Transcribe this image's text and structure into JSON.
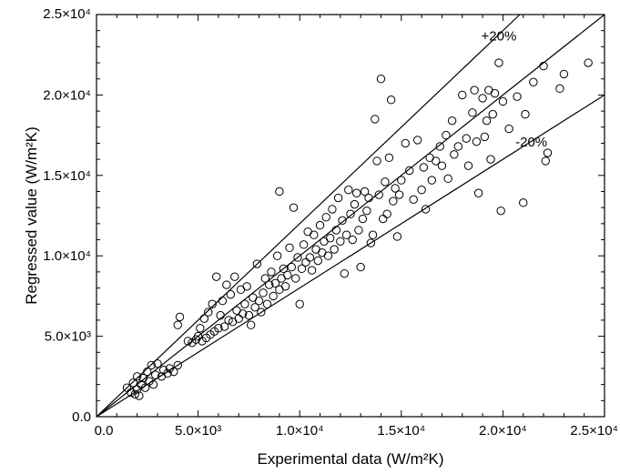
{
  "chart_data": {
    "type": "scatter",
    "xlabel": "Experimental data (W/m²K)",
    "ylabel": "Regressed value (W/m²K)",
    "xlim": [
      0,
      25000
    ],
    "ylim": [
      0,
      25000
    ],
    "x_ticks": [
      {
        "value": 0,
        "label": "0.0"
      },
      {
        "value": 5000,
        "label": "5.0×10³"
      },
      {
        "value": 10000,
        "label": "1.0×10⁴"
      },
      {
        "value": 15000,
        "label": "1.5×10⁴"
      },
      {
        "value": 20000,
        "label": "2.0×10⁴"
      },
      {
        "value": 25000,
        "label": "2.5×10⁴"
      }
    ],
    "y_ticks": [
      {
        "value": 0,
        "label": "0.0"
      },
      {
        "value": 5000,
        "label": "5.0×10³"
      },
      {
        "value": 10000,
        "label": "1.0×10⁴"
      },
      {
        "value": 15000,
        "label": "1.5×10⁴"
      },
      {
        "value": 20000,
        "label": "2.0×10⁴"
      },
      {
        "value": 25000,
        "label": "2.5×10⁴"
      }
    ],
    "reference_lines": [
      {
        "label": "+20%",
        "slope": 1.2
      },
      {
        "label": "-20%",
        "slope": 0.8
      }
    ],
    "grid": false,
    "marker": "open-circle",
    "points": [
      [
        1500,
        1800
      ],
      [
        1700,
        1500
      ],
      [
        1800,
        2100
      ],
      [
        1900,
        1400
      ],
      [
        2000,
        1700
      ],
      [
        2000,
        2500
      ],
      [
        2100,
        1300
      ],
      [
        2200,
        2000
      ],
      [
        2300,
        2400
      ],
      [
        2400,
        1800
      ],
      [
        2500,
        2800
      ],
      [
        2600,
        2200
      ],
      [
        2700,
        3200
      ],
      [
        2800,
        2000
      ],
      [
        2900,
        2600
      ],
      [
        3000,
        3300
      ],
      [
        3200,
        2500
      ],
      [
        3300,
        2900
      ],
      [
        3500,
        2700
      ],
      [
        3600,
        3000
      ],
      [
        3800,
        2800
      ],
      [
        4000,
        3200
      ],
      [
        4000,
        5700
      ],
      [
        4100,
        6200
      ],
      [
        4500,
        4700
      ],
      [
        4700,
        4600
      ],
      [
        4900,
        4800
      ],
      [
        5000,
        5000
      ],
      [
        5100,
        5500
      ],
      [
        5200,
        4700
      ],
      [
        5300,
        6100
      ],
      [
        5400,
        4900
      ],
      [
        5500,
        6500
      ],
      [
        5600,
        5100
      ],
      [
        5700,
        7000
      ],
      [
        5800,
        5300
      ],
      [
        5900,
        8700
      ],
      [
        6000,
        5500
      ],
      [
        6100,
        6300
      ],
      [
        6200,
        7200
      ],
      [
        6300,
        5600
      ],
      [
        6400,
        8200
      ],
      [
        6500,
        6000
      ],
      [
        6600,
        7600
      ],
      [
        6700,
        5900
      ],
      [
        6800,
        8700
      ],
      [
        6900,
        6600
      ],
      [
        7000,
        6100
      ],
      [
        7100,
        7900
      ],
      [
        7200,
        6400
      ],
      [
        7300,
        7000
      ],
      [
        7400,
        8100
      ],
      [
        7500,
        6300
      ],
      [
        7600,
        5700
      ],
      [
        7700,
        7400
      ],
      [
        7800,
        6800
      ],
      [
        7900,
        9500
      ],
      [
        8000,
        7200
      ],
      [
        8100,
        6500
      ],
      [
        8200,
        7700
      ],
      [
        8300,
        8600
      ],
      [
        8400,
        7000
      ],
      [
        8500,
        8200
      ],
      [
        8600,
        9000
      ],
      [
        8700,
        7500
      ],
      [
        8800,
        8300
      ],
      [
        8900,
        10000
      ],
      [
        9000,
        7900
      ],
      [
        9000,
        14000
      ],
      [
        9100,
        8600
      ],
      [
        9200,
        9200
      ],
      [
        9300,
        8100
      ],
      [
        9400,
        8800
      ],
      [
        9500,
        10500
      ],
      [
        9600,
        9300
      ],
      [
        9700,
        13000
      ],
      [
        9800,
        8600
      ],
      [
        9900,
        9900
      ],
      [
        10000,
        7000
      ],
      [
        10100,
        9200
      ],
      [
        10200,
        10700
      ],
      [
        10300,
        9600
      ],
      [
        10400,
        11500
      ],
      [
        10500,
        9900
      ],
      [
        10600,
        9100
      ],
      [
        10700,
        11300
      ],
      [
        10800,
        10400
      ],
      [
        10900,
        9700
      ],
      [
        11000,
        11900
      ],
      [
        11100,
        10200
      ],
      [
        11200,
        10900
      ],
      [
        11300,
        12400
      ],
      [
        11400,
        10000
      ],
      [
        11500,
        11100
      ],
      [
        11600,
        12900
      ],
      [
        11700,
        10400
      ],
      [
        11800,
        11600
      ],
      [
        11900,
        13600
      ],
      [
        12000,
        10900
      ],
      [
        12100,
        12200
      ],
      [
        12200,
        8900
      ],
      [
        12300,
        11300
      ],
      [
        12400,
        14100
      ],
      [
        12500,
        12600
      ],
      [
        12600,
        11000
      ],
      [
        12700,
        13200
      ],
      [
        12800,
        13900
      ],
      [
        12900,
        11600
      ],
      [
        13000,
        9300
      ],
      [
        13100,
        12300
      ],
      [
        13200,
        14000
      ],
      [
        13300,
        12800
      ],
      [
        13400,
        13600
      ],
      [
        13500,
        10800
      ],
      [
        13600,
        11300
      ],
      [
        13700,
        18500
      ],
      [
        13800,
        15900
      ],
      [
        13900,
        13800
      ],
      [
        14000,
        21000
      ],
      [
        14100,
        12300
      ],
      [
        14200,
        14600
      ],
      [
        14300,
        12600
      ],
      [
        14400,
        16100
      ],
      [
        14500,
        19700
      ],
      [
        14600,
        13400
      ],
      [
        14700,
        14200
      ],
      [
        14800,
        11200
      ],
      [
        14900,
        13800
      ],
      [
        15000,
        14700
      ],
      [
        15200,
        17000
      ],
      [
        15400,
        15300
      ],
      [
        15600,
        13500
      ],
      [
        15800,
        17200
      ],
      [
        16000,
        14100
      ],
      [
        16100,
        15500
      ],
      [
        16200,
        12900
      ],
      [
        16400,
        16100
      ],
      [
        16500,
        14700
      ],
      [
        16700,
        15900
      ],
      [
        16900,
        16800
      ],
      [
        17000,
        15600
      ],
      [
        17200,
        17500
      ],
      [
        17300,
        14800
      ],
      [
        17500,
        18400
      ],
      [
        17600,
        16300
      ],
      [
        17800,
        16800
      ],
      [
        18000,
        20000
      ],
      [
        18200,
        17300
      ],
      [
        18300,
        15600
      ],
      [
        18500,
        18900
      ],
      [
        18600,
        20300
      ],
      [
        18700,
        17100
      ],
      [
        18800,
        13900
      ],
      [
        19000,
        19800
      ],
      [
        19100,
        17400
      ],
      [
        19200,
        18400
      ],
      [
        19300,
        20300
      ],
      [
        19400,
        16000
      ],
      [
        19500,
        18800
      ],
      [
        19600,
        20100
      ],
      [
        19800,
        22000
      ],
      [
        19900,
        12800
      ],
      [
        20000,
        19600
      ],
      [
        20300,
        17900
      ],
      [
        20700,
        19900
      ],
      [
        21000,
        13300
      ],
      [
        21100,
        18800
      ],
      [
        21500,
        20800
      ],
      [
        22000,
        21800
      ],
      [
        22100,
        15900
      ],
      [
        22200,
        16400
      ],
      [
        22800,
        20400
      ],
      [
        23000,
        21300
      ],
      [
        24200,
        22000
      ]
    ]
  }
}
